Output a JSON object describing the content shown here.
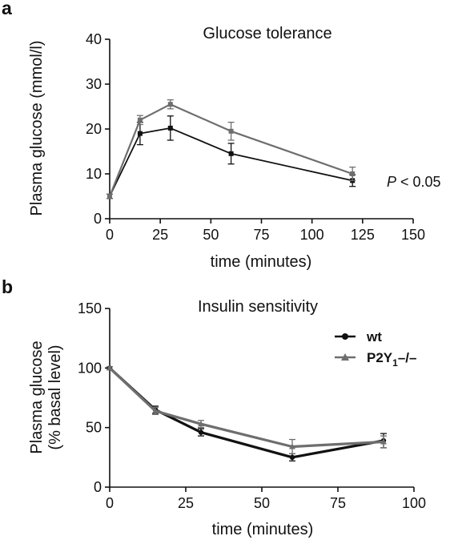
{
  "figure": {
    "panels": [
      "a",
      "b"
    ],
    "annotation_prefix": "P",
    "annotation_value": "< 0.05",
    "legend": [
      {
        "label": "wt",
        "color": "#111111",
        "marker": "circle"
      },
      {
        "label": "P2Y",
        "subscript": "1",
        "suffix": "–/–",
        "color": "#6e6e6e",
        "marker": "triangle"
      }
    ]
  },
  "chart_data": [
    {
      "type": "line",
      "title": "Glucose tolerance",
      "xlabel": "time (minutes)",
      "ylabel": "Plasma glucose (mmol/l)",
      "xlim": [
        0,
        150
      ],
      "ylim": [
        0,
        40
      ],
      "xticks": [
        0,
        25,
        50,
        75,
        100,
        125,
        150
      ],
      "yticks": [
        0,
        10,
        20,
        30,
        40
      ],
      "x": [
        0,
        15,
        30,
        60,
        120
      ],
      "series": [
        {
          "name": "wt",
          "color": "#111111",
          "marker": "square",
          "values": [
            5,
            19,
            20.2,
            14.5,
            8.5
          ],
          "errors": [
            0.5,
            2.5,
            2.7,
            2.3,
            1.3
          ]
        },
        {
          "name": "P2Y1–/–",
          "color": "#6e6e6e",
          "marker": "square",
          "values": [
            5,
            22,
            25.5,
            19.5,
            10
          ],
          "errors": [
            0.5,
            1.0,
            1.0,
            2.0,
            1.5
          ]
        }
      ],
      "grid": false
    },
    {
      "type": "line",
      "title": "Insulin sensitivity",
      "xlabel": "time (minutes)",
      "ylabel": "Plasma glucose (% basal level)",
      "ylabel_lines": [
        "Plasma glucose",
        "(% basal level)"
      ],
      "xlim": [
        0,
        100
      ],
      "ylim": [
        0,
        150
      ],
      "xticks": [
        0,
        25,
        50,
        75,
        100
      ],
      "yticks": [
        0,
        50,
        100,
        150
      ],
      "x": [
        0,
        15,
        30,
        60,
        90
      ],
      "series": [
        {
          "name": "wt",
          "color": "#111111",
          "marker": "circle",
          "values": [
            100,
            65,
            46,
            25,
            39
          ],
          "errors": [
            1,
            3,
            3,
            3,
            6
          ]
        },
        {
          "name": "P2Y1–/–",
          "color": "#6e6e6e",
          "marker": "triangle",
          "values": [
            100,
            64,
            53,
            34,
            38
          ],
          "errors": [
            1,
            3,
            3,
            6,
            5
          ]
        }
      ],
      "legend_position": "top-right",
      "grid": false
    }
  ]
}
